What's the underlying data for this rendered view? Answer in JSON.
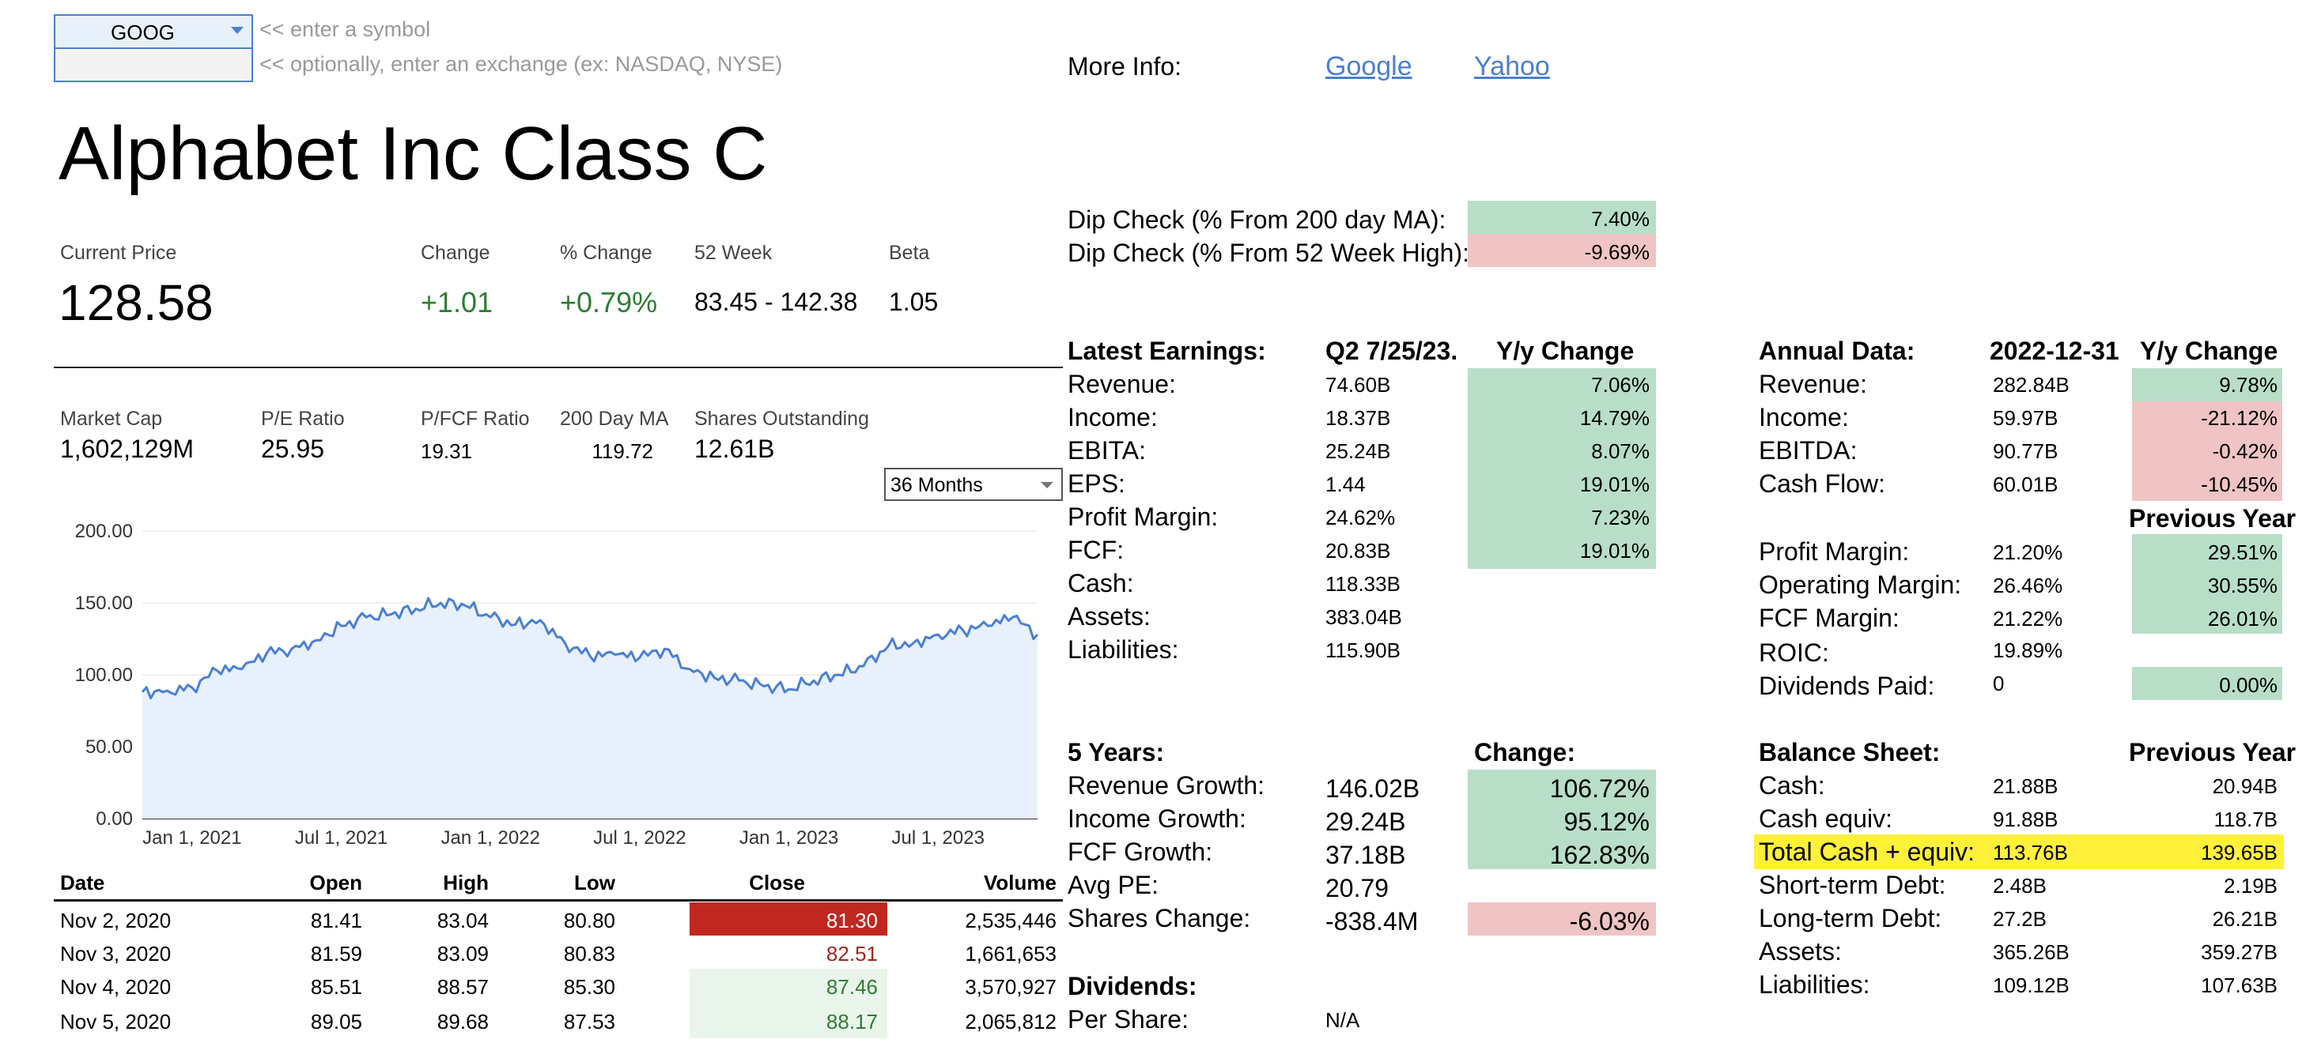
{
  "inputs": {
    "symbol_value": "GOOG",
    "exchange_value": "",
    "symbol_hint": "<< enter a symbol",
    "exchange_hint": "<< optionally, enter an exchange (ex: NASDAQ, NYSE)"
  },
  "more_info": {
    "label": "More Info:",
    "links": [
      "Google",
      "Yahoo"
    ]
  },
  "company_name": "Alphabet Inc Class C",
  "quote": {
    "current_price_label": "Current Price",
    "current_price": "128.58",
    "change_label": "Change",
    "change": "+1.01",
    "pct_change_label": "% Change",
    "pct_change": "+0.79%",
    "week52_label": "52 Week",
    "week52": "83.45 - 142.38",
    "beta_label": "Beta",
    "beta": "1.05"
  },
  "stats": {
    "market_cap_label": "Market Cap",
    "market_cap": "1,602,129M",
    "pe_label": "P/E Ratio",
    "pe": "25.95",
    "pfcf_label": "P/FCF Ratio",
    "pfcf": "19.31",
    "ma200_label": "200 Day MA",
    "ma200": "119.72",
    "shares_label": "Shares Outstanding",
    "shares": "12.61B"
  },
  "range_select": "36 Months",
  "chart_data": {
    "type": "area",
    "y_ticks": [
      "200.00",
      "150.00",
      "100.00",
      "50.00",
      "0.00"
    ],
    "x_ticks": [
      "Jan 1, 2021",
      "Jul 1, 2021",
      "Jan 1, 2022",
      "Jul 1, 2022",
      "Jan 1, 2023",
      "Jul 1, 2023"
    ],
    "ylim": [
      0,
      200
    ],
    "x": [
      "Nov 2020",
      "Dec 2020",
      "Jan 2021",
      "Feb 2021",
      "Mar 2021",
      "Apr 2021",
      "May 2021",
      "Jun 2021",
      "Jul 2021",
      "Aug 2021",
      "Sep 2021",
      "Oct 2021",
      "Nov 2021",
      "Dec 2021",
      "Jan 2022",
      "Feb 2022",
      "Mar 2022",
      "Apr 2022",
      "May 2022",
      "Jun 2022",
      "Jul 2022",
      "Aug 2022",
      "Sep 2022",
      "Oct 2022",
      "Nov 2022",
      "Dec 2022",
      "Jan 2023",
      "Feb 2023",
      "Mar 2023",
      "Apr 2023",
      "May 2023",
      "Jun 2023",
      "Jul 2023",
      "Aug 2023",
      "Sep 2023",
      "Oct 2023",
      "Nov 2023"
    ],
    "values": [
      88,
      89,
      91,
      103,
      104,
      115,
      118,
      124,
      134,
      140,
      142,
      146,
      150,
      148,
      140,
      135,
      138,
      122,
      113,
      114,
      112,
      118,
      104,
      98,
      96,
      92,
      90,
      96,
      100,
      106,
      120,
      122,
      128,
      131,
      134,
      140,
      128
    ],
    "color": "#4a7fd4",
    "fill": "#e8f0fc"
  },
  "table": {
    "headers": [
      "Date",
      "Open",
      "High",
      "Low",
      "Close",
      "Volume"
    ],
    "rows": [
      [
        "Nov 2, 2020",
        "81.41",
        "83.04",
        "80.80",
        "81.30",
        "2,535,446"
      ],
      [
        "Nov 3, 2020",
        "81.59",
        "83.09",
        "80.83",
        "82.51",
        "1,661,653"
      ],
      [
        "Nov 4, 2020",
        "85.51",
        "88.57",
        "85.30",
        "87.46",
        "3,570,927"
      ],
      [
        "Nov 5, 2020",
        "89.05",
        "89.68",
        "87.53",
        "88.17",
        "2,065,812"
      ]
    ]
  },
  "dip": {
    "ma_label": "Dip Check (% From 200 day MA):",
    "ma_value": "7.40%",
    "high_label": "Dip Check (% From 52 Week High):",
    "high_value": "-9.69%"
  },
  "latest": {
    "title": "Latest Earnings:",
    "period": "Q2 7/25/23.",
    "yy_label": "Y/y Change",
    "rows": [
      {
        "label": "Revenue:",
        "value": "74.60B",
        "change": "7.06%"
      },
      {
        "label": "Income:",
        "value": "18.37B",
        "change": "14.79%"
      },
      {
        "label": "EBITA:",
        "value": "25.24B",
        "change": "8.07%"
      },
      {
        "label": "EPS:",
        "value": "1.44",
        "change": "19.01%"
      },
      {
        "label": "Profit Margin:",
        "value": "24.62%",
        "change": "7.23%"
      },
      {
        "label": "FCF:",
        "value": "20.83B",
        "change": "19.01%"
      },
      {
        "label": "Cash:",
        "value": "118.33B",
        "change": ""
      },
      {
        "label": "Assets:",
        "value": "383.04B",
        "change": ""
      },
      {
        "label": "Liabilities:",
        "value": "115.90B",
        "change": ""
      }
    ]
  },
  "five_years": {
    "title": "5 Years:",
    "change_label": "Change:",
    "rows": [
      {
        "label": "Revenue Growth:",
        "value": "146.02B",
        "change": "106.72%"
      },
      {
        "label": "Income Growth:",
        "value": "29.24B",
        "change": "95.12%"
      },
      {
        "label": "FCF Growth:",
        "value": "37.18B",
        "change": "162.83%"
      },
      {
        "label": "Avg PE:",
        "value": "20.79",
        "change": ""
      },
      {
        "label": "Shares Change:",
        "value": "-838.4M",
        "change": "-6.03%"
      }
    ]
  },
  "dividends": {
    "title": "Dividends:",
    "per_share_label": "Per Share:",
    "per_share": "N/A"
  },
  "annual": {
    "title": "Annual Data:",
    "date": "2022-12-31",
    "yy_label": "Y/y Change",
    "rows": [
      {
        "label": "Revenue:",
        "value": "282.84B",
        "change": "9.78%"
      },
      {
        "label": "Income:",
        "value": "59.97B",
        "change": "-21.12%"
      },
      {
        "label": "EBITDA:",
        "value": "90.77B",
        "change": "-0.42%"
      },
      {
        "label": "Cash Flow:",
        "value": "60.01B",
        "change": "-10.45%"
      }
    ],
    "prev_year_label": "Previous Year",
    "margin_rows": [
      {
        "label": "Profit Margin:",
        "value": "21.20%",
        "change": "29.51%"
      },
      {
        "label": "Operating Margin:",
        "value": "26.46%",
        "change": "30.55%"
      },
      {
        "label": "FCF Margin:",
        "value": "21.22%",
        "change": "26.01%"
      },
      {
        "label": "ROIC:",
        "value": "19.89%",
        "change": ""
      },
      {
        "label": "Dividends Paid:",
        "value": "0",
        "change": "0.00%"
      }
    ]
  },
  "balance": {
    "title": "Balance Sheet:",
    "prev_label": "Previous Year",
    "rows": [
      {
        "label": "Cash:",
        "value": "21.88B",
        "prev": "20.94B"
      },
      {
        "label": "Cash equiv:",
        "value": "91.88B",
        "prev": "118.7B"
      },
      {
        "label": "Total Cash + equiv:",
        "value": "113.76B",
        "prev": "139.65B"
      },
      {
        "label": "Short-term Debt:",
        "value": "2.48B",
        "prev": "2.19B"
      },
      {
        "label": "Long-term Debt:",
        "value": "27.2B",
        "prev": "26.21B"
      },
      {
        "label": "Assets:",
        "value": "365.26B",
        "prev": "359.27B"
      },
      {
        "label": "Liabilities:",
        "value": "109.12B",
        "prev": "107.63B"
      }
    ]
  }
}
